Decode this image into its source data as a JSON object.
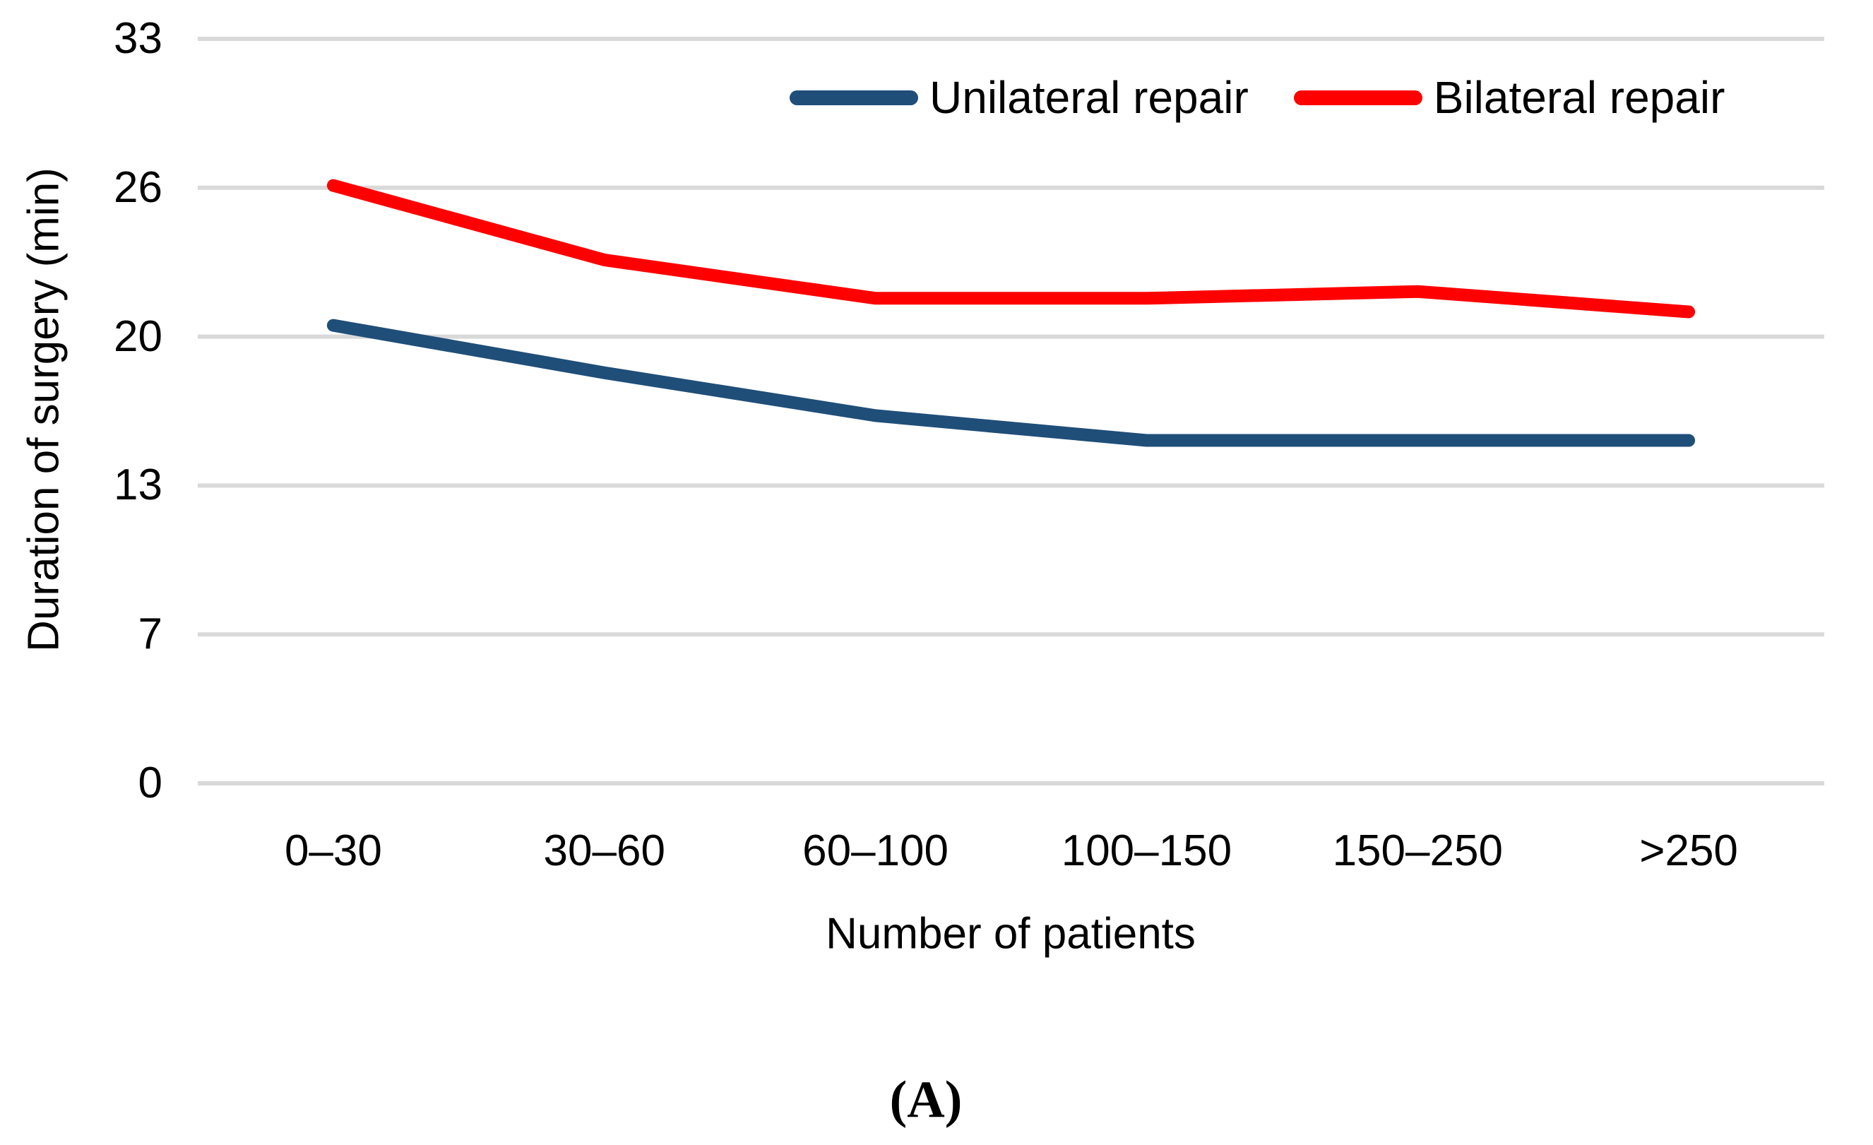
{
  "figure": {
    "caption": "(A)"
  },
  "chart_data": {
    "type": "line",
    "title": "",
    "xlabel": "Number of patients",
    "ylabel": "Duration of surgery (min)",
    "categories": [
      "0–30",
      "30–60",
      "60–100",
      "100–150",
      "150–250",
      ">250"
    ],
    "y_tick_labels": [
      "0",
      "7",
      "13",
      "20",
      "26",
      "33"
    ],
    "ylim": [
      0,
      33
    ],
    "grid": "horizontal-only",
    "legend_position": "top-inside",
    "series": [
      {
        "name": "Unilateral repair",
        "color": "#1F4E79",
        "values": [
          20.3,
          18.2,
          16.3,
          15.2,
          15.2,
          15.2
        ]
      },
      {
        "name": "Bilateral repair",
        "color": "#FF0000",
        "values": [
          26.5,
          23.2,
          21.5,
          21.5,
          21.8,
          20.9
        ]
      }
    ],
    "colors": {
      "gridline": "#D9D9D9",
      "text": "#000000",
      "background": "#FFFFFF"
    }
  }
}
